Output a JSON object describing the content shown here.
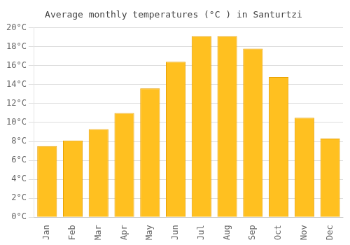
{
  "chart_data": {
    "type": "bar",
    "title": "Average monthly temperatures (°C ) in Santurtzi",
    "categories": [
      "Jan",
      "Feb",
      "Mar",
      "Apr",
      "May",
      "Jun",
      "Jul",
      "Aug",
      "Sep",
      "Oct",
      "Nov",
      "Dec"
    ],
    "values": [
      7.5,
      8.1,
      9.3,
      11.0,
      13.6,
      16.4,
      19.1,
      19.1,
      17.8,
      14.8,
      10.5,
      8.3
    ],
    "color": "#FFC020",
    "ylim": [
      0,
      20
    ],
    "yticks": [
      {
        "value": 0,
        "label": "0°C"
      },
      {
        "value": 2,
        "label": "2°C"
      },
      {
        "value": 4,
        "label": "4°C"
      },
      {
        "value": 6,
        "label": "6°C"
      },
      {
        "value": 8,
        "label": "8°C"
      },
      {
        "value": 10,
        "label": "10°C"
      },
      {
        "value": 12,
        "label": "12°C"
      },
      {
        "value": 14,
        "label": "14°C"
      },
      {
        "value": 16,
        "label": "16°C"
      },
      {
        "value": 18,
        "label": "18°C"
      },
      {
        "value": 20,
        "label": "20°C"
      }
    ],
    "grid": true
  }
}
